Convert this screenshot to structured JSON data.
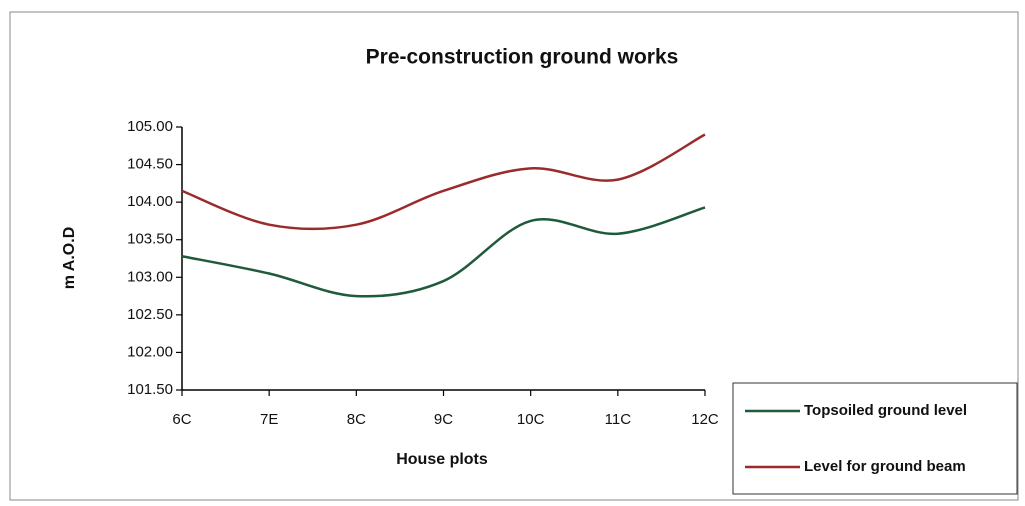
{
  "chart_data": {
    "type": "line",
    "title": "Pre-construction ground works",
    "x_label": "House plots",
    "y_label": "m A.O.D",
    "categories": [
      "6C",
      "7E",
      "8C",
      "9C",
      "10C",
      "11C",
      "12C"
    ],
    "series": [
      {
        "name": "Topsoiled ground level",
        "color": "#1f5a3a",
        "values": [
          103.28,
          103.05,
          102.75,
          102.95,
          103.75,
          103.58,
          103.93
        ]
      },
      {
        "name": "Level for ground beam",
        "color": "#9b2b2b",
        "values": [
          104.15,
          103.7,
          103.7,
          104.15,
          104.45,
          104.3,
          104.9
        ]
      }
    ],
    "ylim": [
      101.5,
      105
    ],
    "yticks": [
      {
        "value": 101.5,
        "label": "101.50"
      },
      {
        "value": 102,
        "label": "102.00"
      },
      {
        "value": 102.5,
        "label": "102.50"
      },
      {
        "value": 103,
        "label": "103.00"
      },
      {
        "value": 103.5,
        "label": "103.50"
      },
      {
        "value": 104,
        "label": "104.00"
      },
      {
        "value": 104.5,
        "label": "104.50"
      },
      {
        "value": 105,
        "label": "105.00"
      }
    ],
    "smooth": true,
    "legend": "lower right"
  }
}
